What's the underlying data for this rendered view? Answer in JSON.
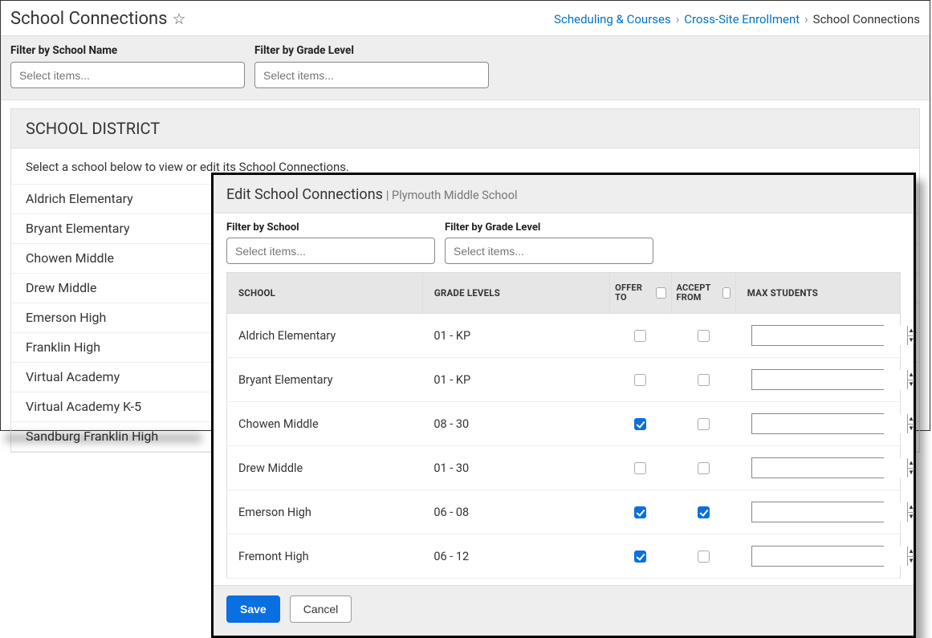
{
  "header": {
    "title": "School Connections",
    "breadcrumb": {
      "item1": "Scheduling & Courses",
      "item2": "Cross-Site Enrollment",
      "current": "School Connections"
    }
  },
  "filters": {
    "name_label": "Filter by School Name",
    "name_placeholder": "Select items...",
    "grade_label": "Filter by Grade Level",
    "grade_placeholder": "Select items..."
  },
  "district": {
    "heading": "SCHOOL DISTRICT",
    "help": "Select a school below to view or edit its School Connections.",
    "schools": [
      "Aldrich Elementary",
      "Bryant Elementary",
      "Chowen Middle",
      "Drew Middle",
      "Emerson High",
      "Franklin High",
      "Virtual Academy",
      "Virtual Academy K-5",
      "Sandburg Franklin High"
    ]
  },
  "modal": {
    "title": "Edit School Connections",
    "subtitle": "Plymouth Middle School",
    "filters": {
      "school_label": "Filter by School",
      "school_placeholder": "Select items...",
      "grade_label": "Filter by Grade Level",
      "grade_placeholder": "Select items..."
    },
    "columns": {
      "school": "SCHOOL",
      "grade": "GRADE LEVELS",
      "offer": "OFFER TO",
      "accept": "ACCEPT FROM",
      "max": "MAX STUDENTS"
    },
    "rows": [
      {
        "school": "Aldrich Elementary",
        "grade": "01 - KP",
        "offer": false,
        "accept": false,
        "max": ""
      },
      {
        "school": "Bryant Elementary",
        "grade": "01 - KP",
        "offer": false,
        "accept": false,
        "max": ""
      },
      {
        "school": "Chowen Middle",
        "grade": "08 - 30",
        "offer": true,
        "accept": false,
        "max": ""
      },
      {
        "school": "Drew Middle",
        "grade": "01 - 30",
        "offer": false,
        "accept": false,
        "max": ""
      },
      {
        "school": "Emerson High",
        "grade": "06 - 08",
        "offer": true,
        "accept": true,
        "max": ""
      },
      {
        "school": "Fremont High",
        "grade": "06 - 12",
        "offer": true,
        "accept": false,
        "max": ""
      }
    ],
    "save_label": "Save",
    "cancel_label": "Cancel"
  },
  "colors": {
    "link": "#0073c4",
    "primary": "#0a6fe0",
    "bg_gray": "#eeeeee",
    "border": "#dddddd"
  }
}
